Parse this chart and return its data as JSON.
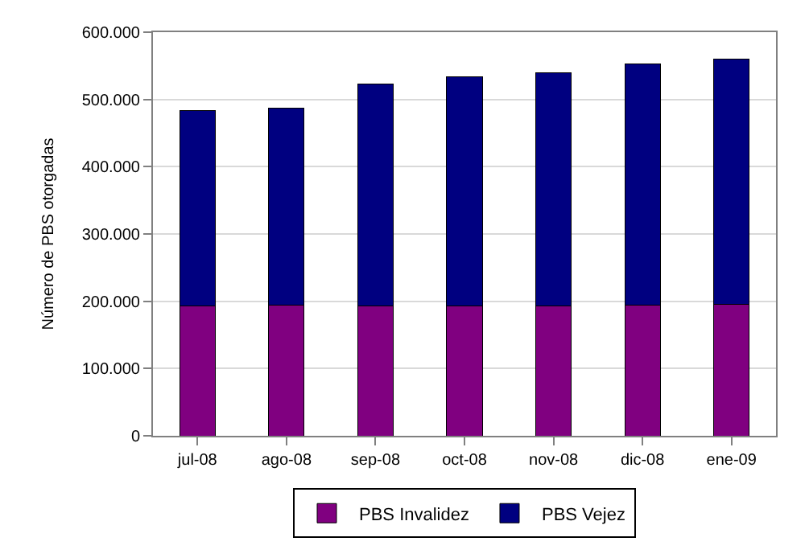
{
  "chart_data": {
    "type": "bar",
    "stacked": true,
    "ylabel": "Número de PBS otorgadas",
    "categories": [
      "jul-08",
      "ago-08",
      "sep-08",
      "oct-08",
      "nov-08",
      "dic-08",
      "ene-09"
    ],
    "series": [
      {
        "name": "PBS Invalidez",
        "color": "#800080",
        "values": [
          193000,
          194500,
          193000,
          193000,
          193000,
          194500,
          196000
        ]
      },
      {
        "name": "PBS Vejez",
        "color": "#000080",
        "values": [
          290000,
          292500,
          330000,
          341000,
          347000,
          358500,
          364000
        ]
      }
    ],
    "ylim": [
      0,
      600000
    ],
    "yticks": [
      0,
      {
        "value": 100000,
        "label": "100.000"
      },
      {
        "value": 200000,
        "label": "200.000"
      },
      {
        "value": 300000,
        "label": "300.000"
      },
      {
        "value": 400000,
        "label": "400.000"
      },
      {
        "value": 500000,
        "label": "500.000"
      },
      {
        "value": 600000,
        "label": "600.000"
      }
    ],
    "grid": "y",
    "legend": "bottom"
  }
}
